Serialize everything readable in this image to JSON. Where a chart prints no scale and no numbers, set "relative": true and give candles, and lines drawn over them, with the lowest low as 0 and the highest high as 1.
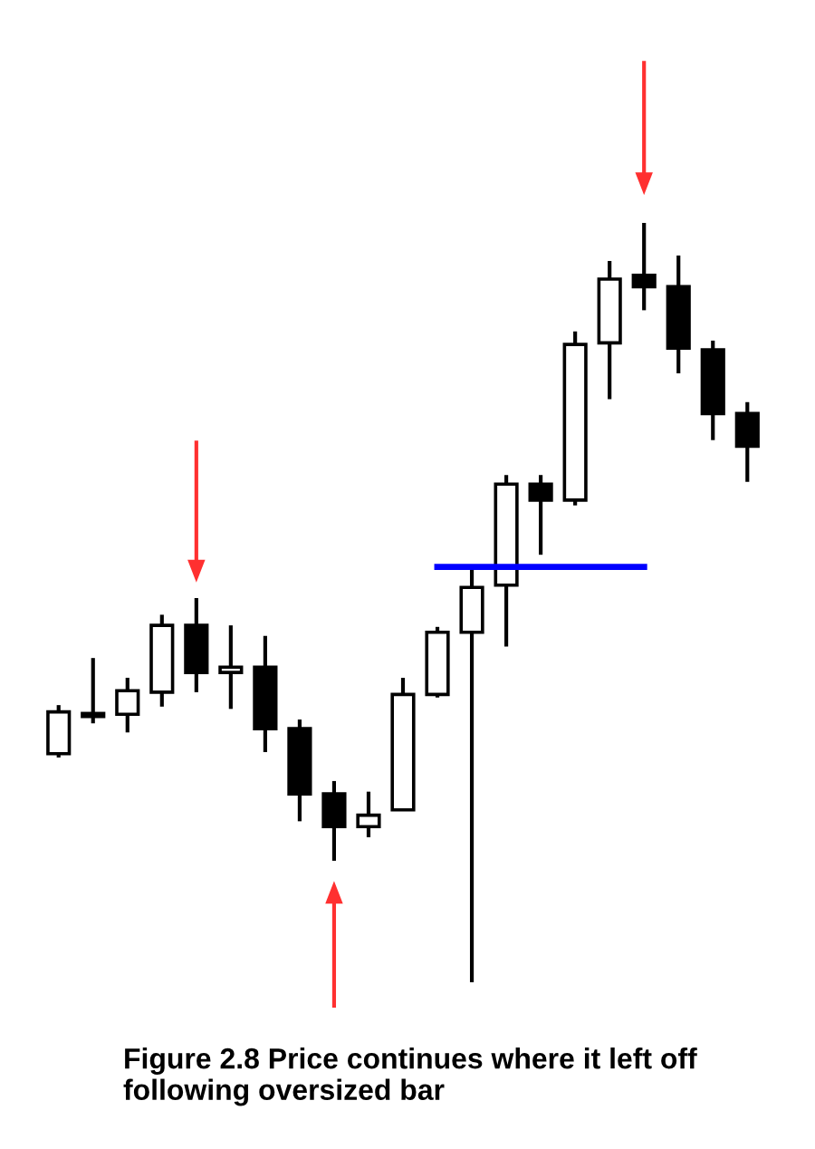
{
  "chart_data": {
    "type": "candlestick",
    "relative": true,
    "title": "Figure 2.8 Price continues where it left off\nfollowing oversized bar",
    "categories": [
      null,
      null,
      null,
      null,
      null,
      null,
      null,
      null,
      null,
      null,
      null,
      null,
      null,
      null,
      null,
      null,
      null,
      null,
      null,
      null,
      null
    ],
    "ohlc": [
      [
        0.301,
        0.365,
        0.296,
        0.356
      ],
      [
        0.353,
        0.427,
        0.341,
        0.35
      ],
      [
        0.353,
        0.401,
        0.329,
        0.384
      ],
      [
        0.382,
        0.484,
        0.363,
        0.47
      ],
      [
        0.47,
        0.506,
        0.382,
        0.408
      ],
      [
        0.408,
        0.47,
        0.36,
        0.415
      ],
      [
        0.415,
        0.456,
        0.303,
        0.334
      ],
      [
        0.334,
        0.346,
        0.212,
        0.248
      ],
      [
        0.248,
        0.265,
        0.16,
        0.205
      ],
      [
        0.205,
        0.251,
        0.191,
        0.22
      ],
      [
        0.227,
        0.401,
        0.227,
        0.379
      ],
      [
        0.379,
        0.468,
        0.375,
        0.461
      ],
      [
        0.461,
        0.544,
        0.0,
        0.52
      ],
      [
        0.523,
        0.668,
        0.442,
        0.656
      ],
      [
        0.656,
        0.668,
        0.563,
        0.635
      ],
      [
        0.635,
        0.857,
        0.628,
        0.84
      ],
      [
        0.842,
        0.95,
        0.768,
        0.926
      ],
      [
        0.931,
        1.0,
        0.885,
        0.916
      ],
      [
        0.916,
        0.957,
        0.802,
        0.835
      ],
      [
        0.833,
        0.845,
        0.714,
        0.749
      ],
      [
        0.749,
        0.764,
        0.659,
        0.706
      ]
    ],
    "series": [
      {
        "type": "line",
        "color": "#0000ff",
        "values": [
          null,
          null,
          null,
          null,
          null,
          null,
          null,
          null,
          null,
          null,
          null,
          0.547,
          0.547,
          0.547,
          0.547,
          0.547,
          0.547,
          0.547,
          null,
          null,
          null
        ]
      }
    ]
  }
}
